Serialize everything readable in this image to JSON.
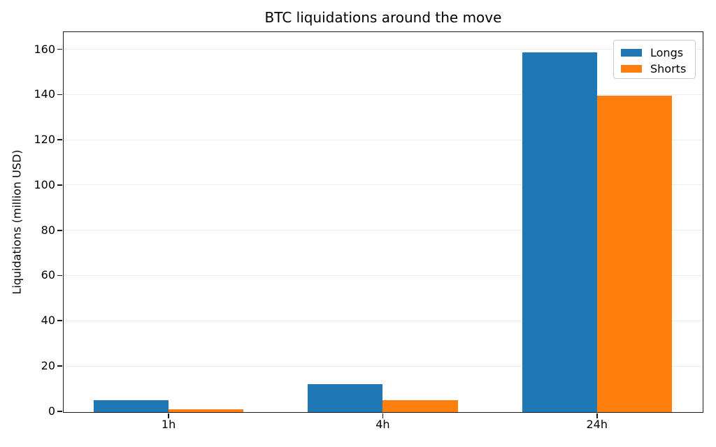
{
  "chart_data": {
    "type": "bar",
    "title": "BTC liquidations around the move",
    "xlabel": "",
    "ylabel": "Liquidations (million USD)",
    "categories": [
      "1h",
      "4h",
      "24h"
    ],
    "series": [
      {
        "name": "Longs",
        "color": "#1f77b4",
        "values": [
          5.2,
          12.3,
          159
        ]
      },
      {
        "name": "Shorts",
        "color": "#ff7f0e",
        "values": [
          1.2,
          5.4,
          140
        ]
      }
    ],
    "yticks": [
      0,
      20,
      40,
      60,
      80,
      100,
      120,
      140,
      160
    ],
    "ylim": [
      0,
      167.6
    ],
    "xlim": [
      -0.49,
      2.49
    ],
    "bar_width": 0.35,
    "grid": "horizontal-light",
    "legend_position": "upper-right"
  }
}
